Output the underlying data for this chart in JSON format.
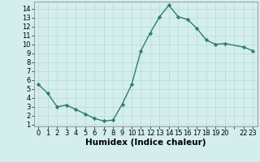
{
  "x": [
    0,
    1,
    2,
    3,
    4,
    5,
    6,
    7,
    8,
    9,
    10,
    11,
    12,
    13,
    14,
    15,
    16,
    17,
    18,
    19,
    20,
    22,
    23
  ],
  "y": [
    5.5,
    4.5,
    3.0,
    3.2,
    2.7,
    2.2,
    1.7,
    1.4,
    1.5,
    3.3,
    5.5,
    9.3,
    11.3,
    13.1,
    14.4,
    13.1,
    12.8,
    11.8,
    10.5,
    10.0,
    10.1,
    9.7,
    9.3
  ],
  "line_color": "#2e7d6e",
  "marker": "D",
  "marker_size": 2.2,
  "bg_color": "#d4eeee",
  "grid_color": "#b8d8d8",
  "xlabel": "Humidex (Indice chaleur)",
  "xlabel_fontsize": 7.5,
  "tick_fontsize": 6.0,
  "xlim": [
    -0.5,
    23.5
  ],
  "ylim": [
    0.8,
    14.8
  ],
  "yticks": [
    1,
    2,
    3,
    4,
    5,
    6,
    7,
    8,
    9,
    10,
    11,
    12,
    13,
    14
  ],
  "xtick_positions": [
    0,
    1,
    2,
    3,
    4,
    5,
    6,
    7,
    8,
    9,
    10,
    11,
    12,
    13,
    14,
    15,
    16,
    17,
    18,
    19,
    20,
    21,
    22,
    23
  ],
  "xtick_labels": [
    "0",
    "1",
    "2",
    "3",
    "4",
    "5",
    "6",
    "7",
    "8",
    "9",
    "10",
    "11",
    "12",
    "13",
    "14",
    "15",
    "16",
    "17",
    "18",
    "19",
    "20",
    "",
    "22",
    "23"
  ]
}
